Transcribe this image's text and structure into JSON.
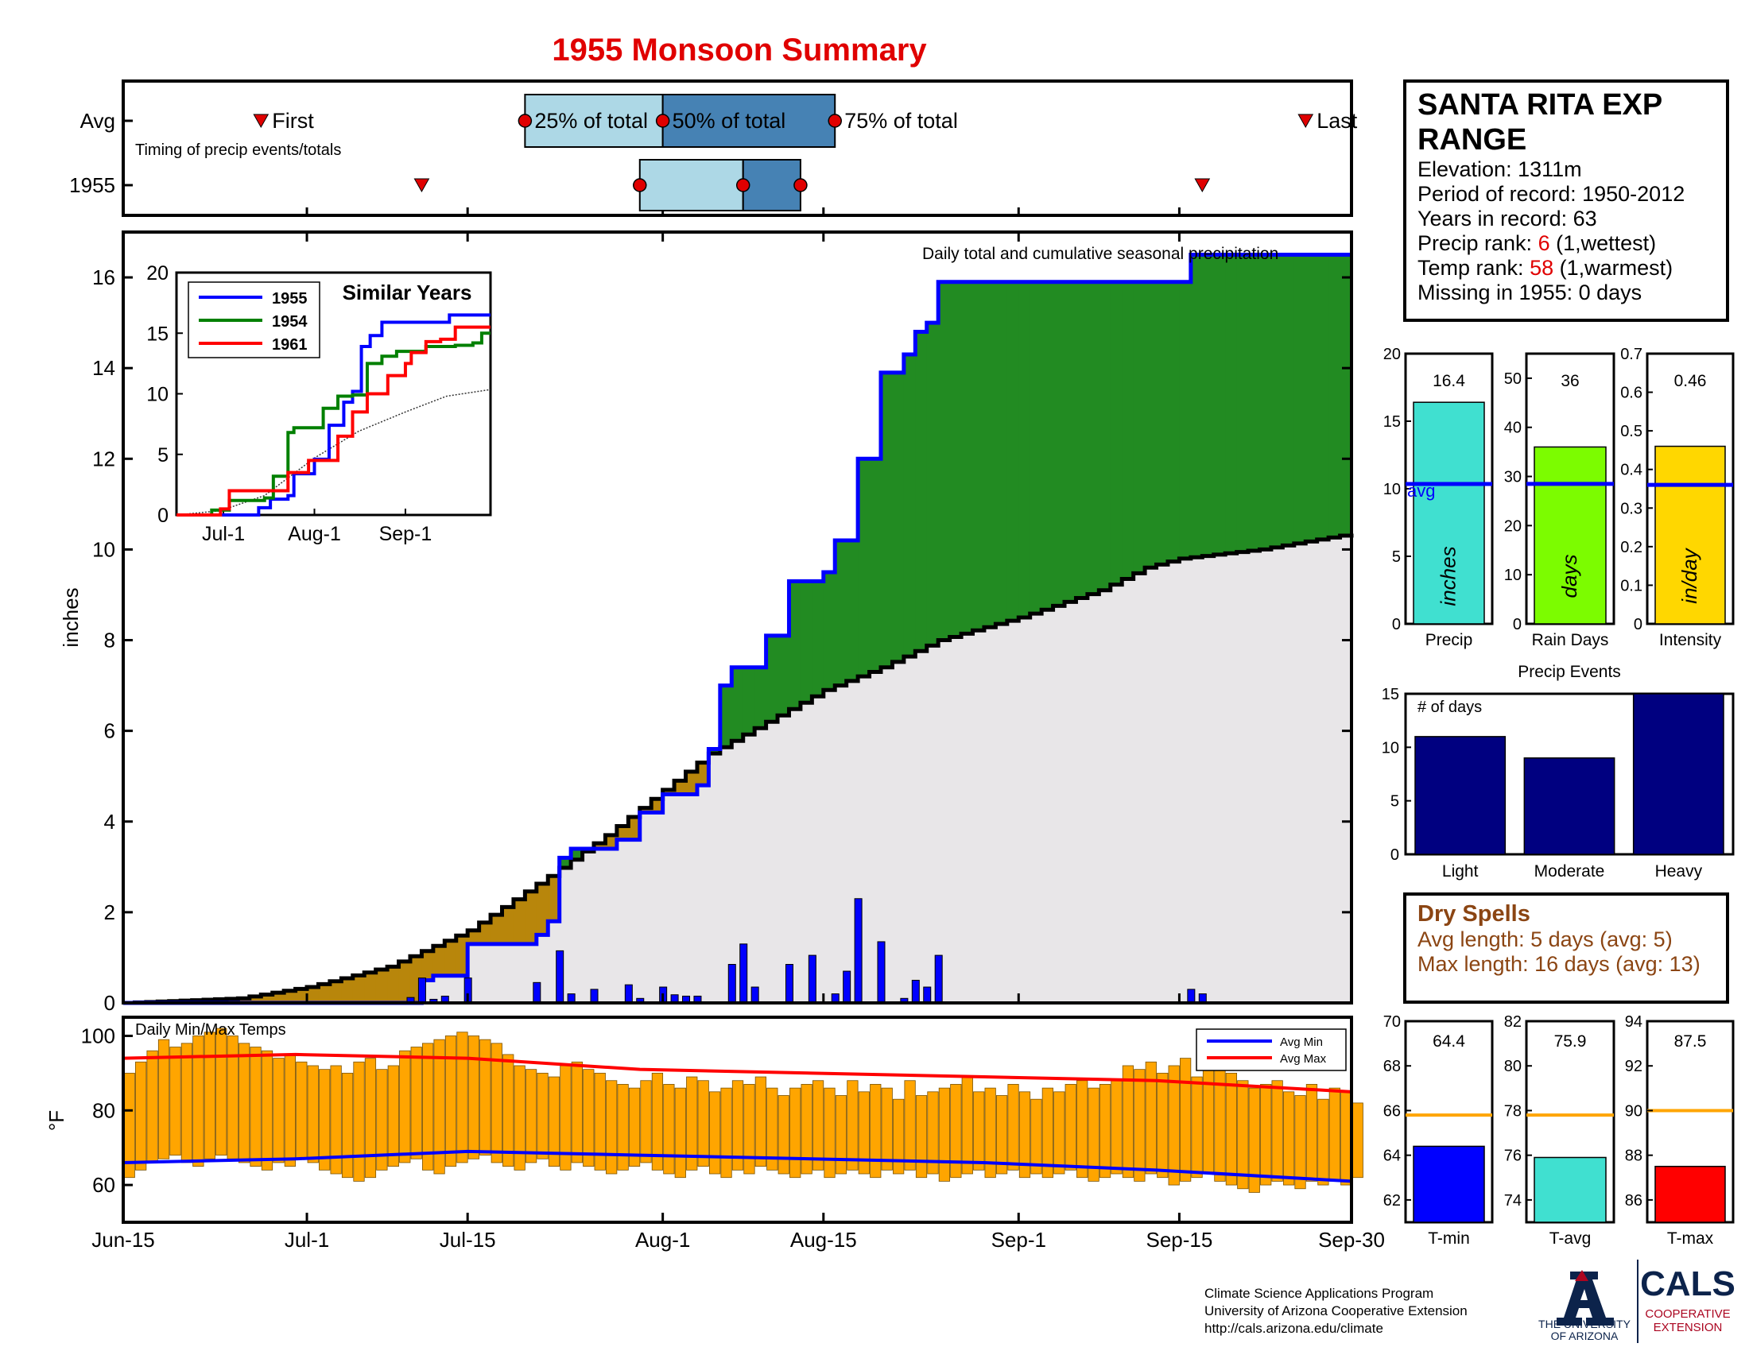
{
  "title": "1955 Monsoon Summary",
  "station": {
    "name": "SANTA RITA EXP RANGE",
    "elevation_label": "Elevation: 1311m",
    "period_label": "Period of record: 1950-2012",
    "years_label": "Years in record: 63",
    "precip_rank_prefix": "Precip rank: ",
    "precip_rank_value": "6",
    "precip_rank_suffix": " (1,wettest)",
    "temp_rank_prefix": "Temp rank: ",
    "temp_rank_value": "58",
    "temp_rank_suffix": " (1,warmest)",
    "missing_label": "Missing in 1955: 0 days"
  },
  "dry_spells": {
    "title": "Dry Spells",
    "avg_label": "Avg length: 5 days (avg: 5)",
    "max_label": "Max length: 16 days (avg: 13)"
  },
  "credits": [
    "Climate Science Applications Program",
    "University of Arizona Cooperative Extension",
    "http://cals.arizona.edu/climate"
  ],
  "logos": {
    "ua_line1": "THE UNIVERSITY",
    "ua_line2": "OF ARIZONA",
    "cals": "CALS",
    "cals_line1": "COOPERATIVE",
    "cals_line2": "EXTENSION"
  },
  "chart_data": [
    {
      "type": "timeline",
      "id": "timing",
      "label": "Timing of precip events/totals",
      "rows": [
        "Avg",
        "1955"
      ],
      "x_range": [
        "Jun-15",
        "Sep-30"
      ],
      "markers": {
        "Avg": {
          "first": "Jun-27",
          "p25": "Jul-20",
          "p50": "Aug-1",
          "p75": "Aug-16",
          "last": "Sep-26"
        },
        "1955": {
          "first": "Jul-11",
          "p25": "Jul-30",
          "p50": "Aug-8",
          "p75": "Aug-13",
          "last": "Sep-17"
        }
      },
      "labels": {
        "first": "First",
        "last": "Last",
        "p25": "25% of total",
        "p50": "50% of total",
        "p75": "75% of total"
      },
      "colors": {
        "light": "#add8e6",
        "dark": "#4682b4",
        "marker": "#e00000"
      }
    },
    {
      "type": "area",
      "id": "precip",
      "annotation": "Daily total and cumulative seasonal precipitation",
      "ylabel": "inches",
      "ylim": [
        0,
        17
      ],
      "yticks": [
        0,
        2,
        4,
        6,
        8,
        10,
        12,
        14,
        16
      ],
      "x_range": [
        "Jun-15",
        "Sep-30"
      ],
      "xticks": [
        "Jun-15",
        "Jul-1",
        "Jul-15",
        "Aug-1",
        "Aug-15",
        "Sep-1",
        "Sep-15",
        "Sep-30"
      ],
      "avg_cumulative": [
        [
          "Jun-15",
          0
        ],
        [
          "Jun-25",
          0.1
        ],
        [
          "Jul-1",
          0.35
        ],
        [
          "Jul-8",
          0.8
        ],
        [
          "Jul-15",
          1.6
        ],
        [
          "Jul-22",
          2.8
        ],
        [
          "Jul-27",
          3.7
        ],
        [
          "Aug-1",
          4.7
        ],
        [
          "Aug-5",
          5.5
        ],
        [
          "Aug-10",
          6.2
        ],
        [
          "Aug-15",
          6.9
        ],
        [
          "Aug-20",
          7.4
        ],
        [
          "Aug-25",
          8.0
        ],
        [
          "Sep-1",
          8.5
        ],
        [
          "Sep-8",
          9.1
        ],
        [
          "Sep-12",
          9.6
        ],
        [
          "Sep-15",
          9.8
        ],
        [
          "Sep-22",
          10.0
        ],
        [
          "Sep-30",
          10.35
        ]
      ],
      "cum_1955": [
        [
          "Jun-15",
          0
        ],
        [
          "Jul-10",
          0
        ],
        [
          "Jul-11",
          0.5
        ],
        [
          "Jul-12",
          0.6
        ],
        [
          "Jul-15",
          1.3
        ],
        [
          "Jul-21",
          1.5
        ],
        [
          "Jul-22",
          1.8
        ],
        [
          "Jul-23",
          3.2
        ],
        [
          "Jul-24",
          3.4
        ],
        [
          "Jul-28",
          3.6
        ],
        [
          "Jul-30",
          4.2
        ],
        [
          "Aug-1",
          4.6
        ],
        [
          "Aug-4",
          4.8
        ],
        [
          "Aug-5",
          5.6
        ],
        [
          "Aug-6",
          7.0
        ],
        [
          "Aug-7",
          7.4
        ],
        [
          "Aug-10",
          8.1
        ],
        [
          "Aug-12",
          9.3
        ],
        [
          "Aug-15",
          9.5
        ],
        [
          "Aug-16",
          10.2
        ],
        [
          "Aug-18",
          12.0
        ],
        [
          "Aug-20",
          13.9
        ],
        [
          "Aug-22",
          14.3
        ],
        [
          "Aug-23",
          14.8
        ],
        [
          "Aug-24",
          15.0
        ],
        [
          "Aug-25",
          15.9
        ],
        [
          "Sep-15",
          15.9
        ],
        [
          "Sep-16",
          16.5
        ],
        [
          "Sep-30",
          16.5
        ]
      ],
      "daily_1955": [
        [
          "Jul-10",
          0.12
        ],
        [
          "Jul-11",
          0.55
        ],
        [
          "Jul-12",
          0.08
        ],
        [
          "Jul-13",
          0.15
        ],
        [
          "Jul-15",
          0.55
        ],
        [
          "Jul-21",
          0.45
        ],
        [
          "Jul-23",
          1.15
        ],
        [
          "Jul-24",
          0.2
        ],
        [
          "Jul-26",
          0.3
        ],
        [
          "Jul-29",
          0.4
        ],
        [
          "Jul-30",
          0.1
        ],
        [
          "Aug-1",
          0.35
        ],
        [
          "Aug-2",
          0.18
        ],
        [
          "Aug-3",
          0.15
        ],
        [
          "Aug-4",
          0.15
        ],
        [
          "Aug-7",
          0.85
        ],
        [
          "Aug-8",
          1.3
        ],
        [
          "Aug-9",
          0.35
        ],
        [
          "Aug-12",
          0.85
        ],
        [
          "Aug-14",
          1.05
        ],
        [
          "Aug-16",
          0.2
        ],
        [
          "Aug-17",
          0.7
        ],
        [
          "Aug-18",
          2.3
        ],
        [
          "Aug-20",
          1.35
        ],
        [
          "Aug-22",
          0.1
        ],
        [
          "Aug-23",
          0.5
        ],
        [
          "Aug-24",
          0.35
        ],
        [
          "Aug-25",
          1.05
        ],
        [
          "Sep-16",
          0.3
        ],
        [
          "Sep-17",
          0.2
        ]
      ],
      "colors": {
        "above_avg": "#228b22",
        "below_avg": "#b8860b",
        "avg_fill": "#e8e6e8",
        "line": "#0000ff",
        "bars": "#0000ff"
      }
    },
    {
      "type": "line",
      "id": "similar",
      "title": "Similar Years",
      "ylim": [
        0,
        20
      ],
      "yticks": [
        0,
        5,
        10,
        15,
        20
      ],
      "xticks": [
        "Jul-1",
        "Aug-1",
        "Sep-1"
      ],
      "series": [
        {
          "name": "1955",
          "color": "#0000ff",
          "values": [
            [
              0,
              0
            ],
            [
              25,
              0
            ],
            [
              28,
              0.6
            ],
            [
              32,
              1.3
            ],
            [
              38,
              1.6
            ],
            [
              40,
              3.4
            ],
            [
              47,
              4.6
            ],
            [
              52,
              7.4
            ],
            [
              57,
              9.3
            ],
            [
              60,
              10.2
            ],
            [
              63,
              13.9
            ],
            [
              66,
              14.8
            ],
            [
              70,
              15.9
            ],
            [
              92,
              15.9
            ],
            [
              93,
              16.5
            ],
            [
              107,
              16.5
            ]
          ]
        },
        {
          "name": "1954",
          "color": "#008000",
          "values": [
            [
              0,
              0
            ],
            [
              10,
              0
            ],
            [
              12,
              0.4
            ],
            [
              18,
              1.2
            ],
            [
              30,
              1.4
            ],
            [
              33,
              3.2
            ],
            [
              38,
              6.8
            ],
            [
              40,
              7.2
            ],
            [
              47,
              7.2
            ],
            [
              50,
              8.8
            ],
            [
              55,
              9.8
            ],
            [
              60,
              9.9
            ],
            [
              65,
              12.5
            ],
            [
              70,
              13.1
            ],
            [
              75,
              13.5
            ],
            [
              85,
              13.9
            ],
            [
              95,
              14.0
            ],
            [
              101,
              14.2
            ],
            [
              104,
              15.0
            ],
            [
              107,
              15.0
            ]
          ]
        },
        {
          "name": "1961",
          "color": "#ff0000",
          "values": [
            [
              0,
              0
            ],
            [
              15,
              0.5
            ],
            [
              18,
              2.0
            ],
            [
              30,
              2.0
            ],
            [
              38,
              3.5
            ],
            [
              45,
              4.5
            ],
            [
              55,
              6.5
            ],
            [
              60,
              8.5
            ],
            [
              65,
              10.0
            ],
            [
              72,
              11.5
            ],
            [
              78,
              12.5
            ],
            [
              80,
              13.4
            ],
            [
              85,
              14.3
            ],
            [
              90,
              14.5
            ],
            [
              95,
              15.5
            ],
            [
              107,
              15.5
            ]
          ]
        }
      ],
      "avg": [
        [
          0,
          0
        ],
        [
          15,
          0.35
        ],
        [
          30,
          1.6
        ],
        [
          47,
          4.7
        ],
        [
          62,
          6.9
        ],
        [
          78,
          8.5
        ],
        [
          92,
          9.8
        ],
        [
          107,
          10.35
        ]
      ]
    },
    {
      "type": "bar",
      "id": "summary_bars",
      "panels": [
        {
          "category": "Precip",
          "value": 16.4,
          "avg": 10.35,
          "ylim": [
            0,
            20
          ],
          "yticks": [
            0,
            5,
            10,
            15,
            20
          ],
          "unit_label": "inches",
          "color": "#40e0d0",
          "avg_label": "avg"
        },
        {
          "category": "Rain Days",
          "value": 36,
          "avg": 28.5,
          "ylim": [
            0,
            55
          ],
          "yticks": [
            0,
            10,
            20,
            30,
            40,
            50
          ],
          "unit_label": "days",
          "color": "#7cfc00"
        },
        {
          "category": "Intensity",
          "value": 0.46,
          "avg": 0.36,
          "ylim": [
            0,
            0.7
          ],
          "yticks": [
            0,
            0.1,
            0.2,
            0.3,
            0.4,
            0.5,
            0.6,
            0.7
          ],
          "unit_label": "in/day",
          "color": "#ffd700"
        }
      ]
    },
    {
      "type": "bar",
      "id": "precip_events",
      "title": "Precip Events",
      "ylabel": "# of days",
      "ylim": [
        0,
        15
      ],
      "yticks": [
        0,
        5,
        10,
        15
      ],
      "categories": [
        "Light",
        "Moderate",
        "Heavy"
      ],
      "values": [
        11,
        9,
        15
      ],
      "color": "#000080"
    },
    {
      "type": "bar",
      "id": "temps",
      "title": "Daily Min/Max Temps",
      "ylabel": "°F",
      "ylim": [
        50,
        105
      ],
      "yticks": [
        60,
        80,
        100
      ],
      "legend": [
        "Avg Min",
        "Avg Max"
      ],
      "avg_min": [
        [
          0,
          66
        ],
        [
          15,
          67
        ],
        [
          30,
          69
        ],
        [
          45,
          68
        ],
        [
          60,
          67
        ],
        [
          75,
          66
        ],
        [
          90,
          64
        ],
        [
          107,
          61
        ]
      ],
      "avg_max": [
        [
          0,
          94
        ],
        [
          15,
          95
        ],
        [
          30,
          94
        ],
        [
          45,
          91
        ],
        [
          60,
          90
        ],
        [
          75,
          89
        ],
        [
          90,
          88
        ],
        [
          107,
          85
        ]
      ],
      "daily_max": [
        90,
        93,
        96,
        99,
        97,
        98,
        100,
        101,
        102,
        100,
        98,
        97,
        96,
        94,
        95,
        93,
        92,
        91,
        92,
        90,
        93,
        94,
        91,
        92,
        96,
        97,
        98,
        99,
        100,
        101,
        100,
        99,
        98,
        95,
        92,
        91,
        90,
        89,
        92,
        93,
        91,
        90,
        88,
        87,
        86,
        88,
        90,
        87,
        86,
        89,
        88,
        85,
        86,
        88,
        87,
        89,
        86,
        84,
        86,
        87,
        88,
        86,
        84,
        88,
        85,
        87,
        86,
        83,
        88,
        84,
        85,
        86,
        87,
        89,
        85,
        86,
        84,
        87,
        85,
        83,
        86,
        85,
        87,
        88,
        86,
        87,
        88,
        92,
        91,
        93,
        90,
        92,
        94,
        89,
        91,
        92,
        90,
        88,
        86,
        87,
        88,
        85,
        84,
        87,
        83,
        86,
        85,
        82
      ],
      "daily_min": [
        62,
        64,
        66,
        67,
        68,
        66,
        65,
        67,
        68,
        67,
        66,
        65,
        64,
        66,
        65,
        67,
        66,
        64,
        63,
        62,
        61,
        62,
        64,
        65,
        66,
        67,
        64,
        63,
        65,
        66,
        67,
        68,
        66,
        65,
        64,
        66,
        67,
        65,
        64,
        66,
        65,
        64,
        63,
        64,
        65,
        66,
        64,
        63,
        62,
        64,
        65,
        63,
        62,
        64,
        63,
        65,
        64,
        63,
        62,
        63,
        64,
        62,
        63,
        64,
        63,
        62,
        64,
        63,
        64,
        62,
        63,
        61,
        62,
        63,
        64,
        62,
        63,
        64,
        62,
        63,
        62,
        63,
        64,
        62,
        61,
        62,
        63,
        62,
        61,
        63,
        62,
        60,
        61,
        62,
        63,
        61,
        60,
        59,
        58,
        60,
        61,
        60,
        59,
        61,
        60,
        61,
        60,
        62
      ],
      "bar_color": "#ffa500",
      "xticks": [
        "Jun-15",
        "Jul-1",
        "Jul-15",
        "Aug-1",
        "Aug-15",
        "Sep-1",
        "Sep-15",
        "Sep-30"
      ]
    },
    {
      "type": "bar",
      "id": "temp_bars",
      "panels": [
        {
          "category": "T-min",
          "value": 64.4,
          "avg": 65.8,
          "ylim": [
            61,
            70
          ],
          "yticks": [
            62,
            64,
            66,
            68,
            70
          ],
          "color": "#0000ff"
        },
        {
          "category": "T-avg",
          "value": 75.9,
          "avg": 77.8,
          "ylim": [
            73,
            82
          ],
          "yticks": [
            74,
            76,
            78,
            80,
            82
          ],
          "color": "#40e0d0"
        },
        {
          "category": "T-max",
          "value": 87.5,
          "avg": 90.0,
          "ylim": [
            85,
            94
          ],
          "yticks": [
            86,
            88,
            90,
            92,
            94
          ],
          "color": "#ff0000"
        }
      ],
      "avg_color": "#ffa500"
    }
  ]
}
